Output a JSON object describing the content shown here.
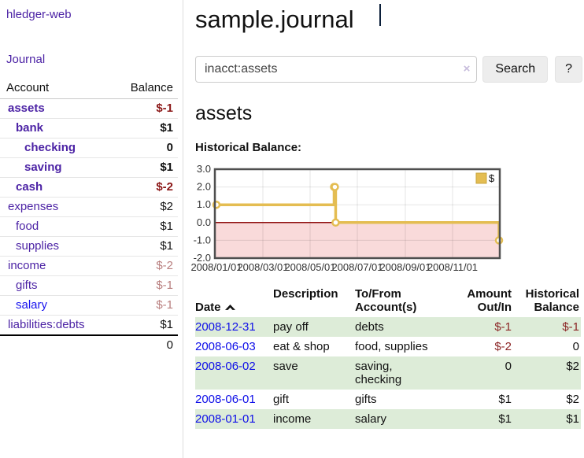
{
  "sidebar": {
    "brand": "hledger-web",
    "journal_link": "Journal",
    "headers": {
      "account": "Account",
      "balance": "Balance"
    },
    "accounts": [
      {
        "name": "assets",
        "balance": "$-1"
      },
      {
        "name": "bank",
        "balance": "$1"
      },
      {
        "name": "checking",
        "balance": "0"
      },
      {
        "name": "saving",
        "balance": "$1"
      },
      {
        "name": "cash",
        "balance": "$-2"
      },
      {
        "name": "expenses",
        "balance": "$2"
      },
      {
        "name": "food",
        "balance": "$1"
      },
      {
        "name": "supplies",
        "balance": "$1"
      },
      {
        "name": "income",
        "balance": "$-2"
      },
      {
        "name": "gifts",
        "balance": "$-1"
      },
      {
        "name": "salary",
        "balance": "$-1"
      },
      {
        "name": "liabilities:debts",
        "balance": "$1"
      }
    ],
    "total": "0"
  },
  "header": {
    "title": "sample.journal"
  },
  "search": {
    "value": "inacct:assets",
    "clear_icon": "×",
    "button_label": "Search",
    "help_label": "?"
  },
  "account_page": {
    "title": "assets",
    "chart_label": "Historical Balance:"
  },
  "chart_data": {
    "type": "line",
    "step": true,
    "title": "Historical Balance:",
    "series": [
      {
        "name": "$",
        "x": [
          "2008-01-01",
          "2008-06-01",
          "2008-06-02",
          "2008-06-03",
          "2008-12-31"
        ],
        "values": [
          1,
          2,
          2,
          0,
          -1
        ]
      }
    ],
    "x_range": [
      "2007-12-30",
      "2009-01-01"
    ],
    "x_ticks": [
      "2008/01/01",
      "2008/03/01",
      "2008/05/01",
      "2008/07/01",
      "2008/09/01",
      "2008/11/01"
    ],
    "y_ticks": [
      3.0,
      2.0,
      1.0,
      0.0,
      -1.0,
      -2.0
    ],
    "ylim": [
      -2.0,
      3.0
    ],
    "grid": true,
    "legend_position": "top-right",
    "series_color": "#e4bd52",
    "grid_color": "#dddddd",
    "border_color": "#4f4f4f",
    "negative_region_color": "#f9dada",
    "zero_line_color": "#8e0e0e"
  },
  "transactions": {
    "headers": {
      "date": "Date",
      "description": "Description",
      "accounts": "To/From\nAccount(s)",
      "amount": "Amount\nOut/In",
      "balance": "Historical\nBalance"
    },
    "rows": [
      {
        "date": "2008-12-31",
        "description": "pay off",
        "accounts": "debts",
        "amount": "$-1",
        "balance": "$-1"
      },
      {
        "date": "2008-06-03",
        "description": "eat & shop",
        "accounts": "food, supplies",
        "amount": "$-2",
        "balance": "0"
      },
      {
        "date": "2008-06-02",
        "description": "save",
        "accounts": "saving,\nchecking",
        "amount": "0",
        "balance": "$2"
      },
      {
        "date": "2008-06-01",
        "description": "gift",
        "accounts": "gifts",
        "amount": "$1",
        "balance": "$2"
      },
      {
        "date": "2008-01-01",
        "description": "income",
        "accounts": "salary",
        "amount": "$1",
        "balance": "$1"
      }
    ]
  }
}
